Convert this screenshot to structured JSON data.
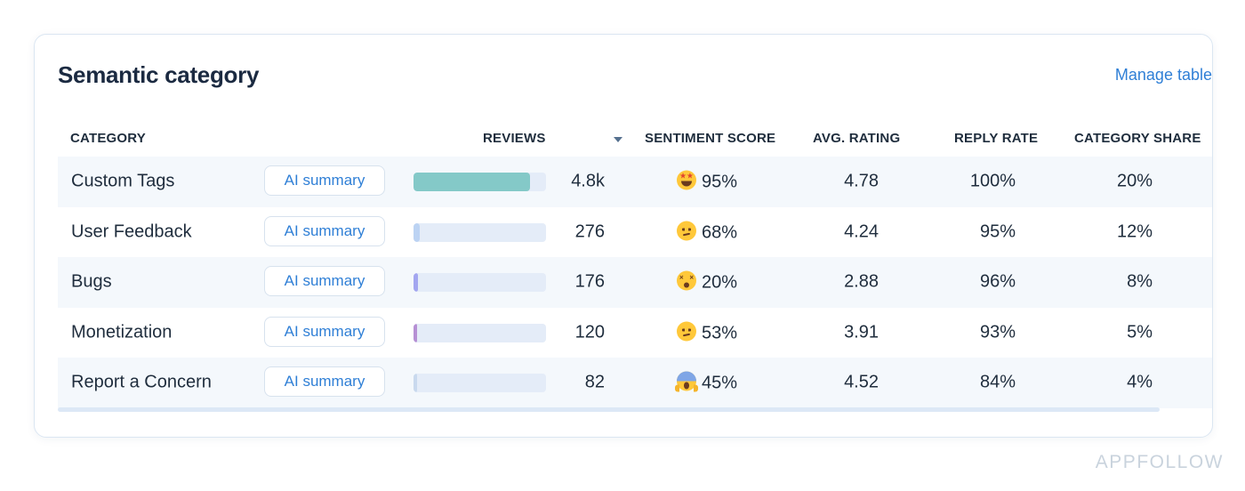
{
  "card": {
    "title": "Semantic category",
    "manage_label": "Manage table"
  },
  "columns": {
    "category": "CATEGORY",
    "reviews": "REVIEWS",
    "sentiment": "SENTIMENT SCORE",
    "rating": "AVG. RATING",
    "reply": "REPLY RATE",
    "share": "CATEGORY SHARE"
  },
  "rows": [
    {
      "name": "Custom Tags",
      "ai_label": "AI summary",
      "reviews": "4.8k",
      "reviews_bar_fraction": 0.88,
      "bar_color": "#84c9c8",
      "sentiment_icon": "star-struck-face-icon",
      "sentiment": "95%",
      "rating": "4.78",
      "reply": "100%",
      "share": "20%"
    },
    {
      "name": "User Feedback",
      "ai_label": "AI summary",
      "reviews": "276",
      "reviews_bar_fraction": 0.05,
      "bar_color": "#bcd3f3",
      "sentiment_icon": "confused-face-icon",
      "sentiment": "68%",
      "rating": "4.24",
      "reply": "95%",
      "share": "12%"
    },
    {
      "name": "Bugs",
      "ai_label": "AI summary",
      "reviews": "176",
      "reviews_bar_fraction": 0.035,
      "bar_color": "#a3a6f0",
      "sentiment_icon": "dizzy-face-icon",
      "sentiment": "20%",
      "rating": "2.88",
      "reply": "96%",
      "share": "8%"
    },
    {
      "name": "Monetization",
      "ai_label": "AI summary",
      "reviews": "120",
      "reviews_bar_fraction": 0.025,
      "bar_color": "#b690d4",
      "sentiment_icon": "confused-face-icon",
      "sentiment": "53%",
      "rating": "3.91",
      "reply": "93%",
      "share": "5%"
    },
    {
      "name": "Report a Concern",
      "ai_label": "AI summary",
      "reviews": "82",
      "reviews_bar_fraction": 0.015,
      "bar_color": "#c9d9ee",
      "sentiment_icon": "screaming-face-icon",
      "sentiment": "45%",
      "rating": "4.52",
      "reply": "84%",
      "share": "4%"
    }
  ],
  "watermark": "APPFOLLOW",
  "colors": {
    "accent": "#2f7fd6",
    "row_alt": "#f4f8fc",
    "bar_track": "#e4ecf8"
  }
}
